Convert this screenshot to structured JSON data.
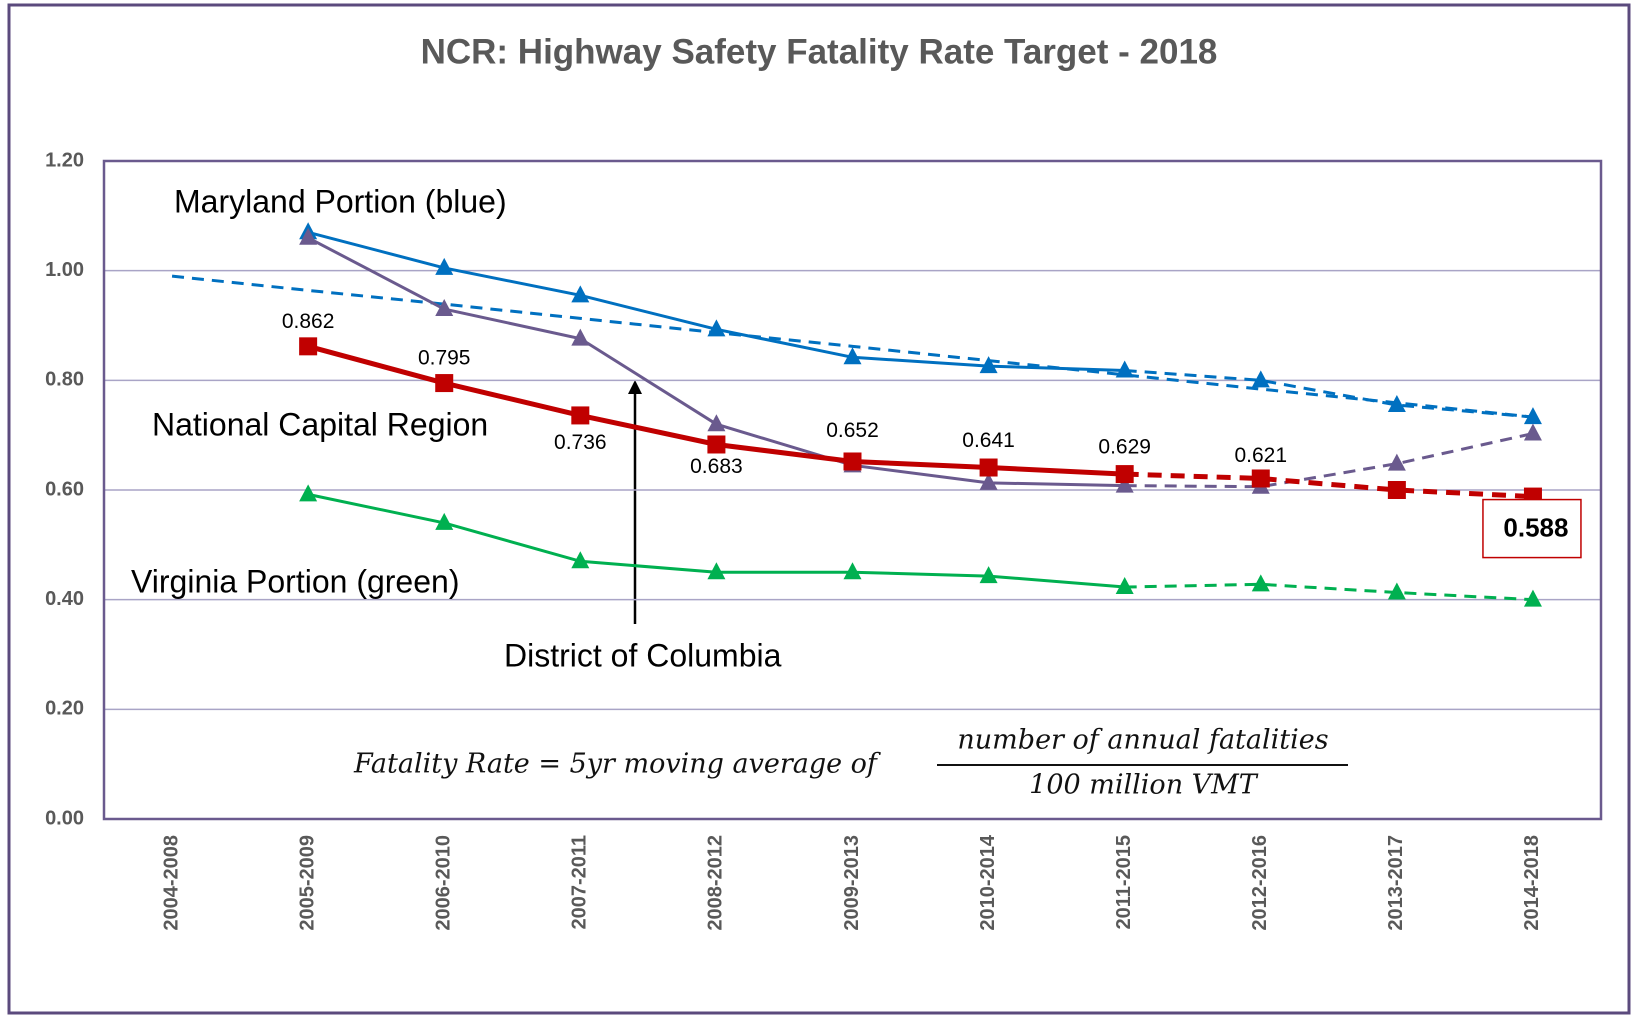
{
  "chart_data": {
    "type": "line",
    "title": "NCR: Highway Safety Fatality Rate Target - 2018",
    "categories": [
      "2004-2008",
      "2005-2009",
      "2006-2010",
      "2007-2011",
      "2008-2012",
      "2009-2013",
      "2010-2014",
      "2011-2015",
      "2012-2016",
      "2013-2017",
      "2014-2018"
    ],
    "series": [
      {
        "style": "dashed",
        "color": "#0070c0",
        "values": [
          0.99,
          0.964,
          0.939,
          0.913,
          0.887,
          0.862,
          0.836,
          0.81,
          0.784,
          0.759,
          0.733
        ]
      },
      {
        "name": "Maryland Portion (blue)",
        "color": "#0070c0",
        "marker": "triangle",
        "dashed_from": 8,
        "values": [
          null,
          1.07,
          1.005,
          0.955,
          0.893,
          0.842,
          0.826,
          0.818,
          0.8,
          0.755,
          0.733
        ]
      },
      {
        "name": "District of Columbia",
        "color": "#6a5a8e",
        "marker": "triangle",
        "dashed_from": 8,
        "values": [
          null,
          1.06,
          0.93,
          0.876,
          0.72,
          0.645,
          0.613,
          0.608,
          0.606,
          0.648,
          0.703
        ]
      },
      {
        "name": "Virginia Portion (green)",
        "color": "#00b050",
        "marker": "triangle",
        "dashed_from": 8,
        "values": [
          null,
          0.592,
          0.54,
          0.47,
          0.45,
          0.45,
          0.443,
          0.423,
          0.428,
          0.413,
          0.4
        ]
      },
      {
        "name": "National Capital Region",
        "color": "#c00000",
        "marker": "square",
        "dashed_from": 8,
        "values": [
          null,
          0.862,
          0.795,
          0.736,
          0.683,
          0.652,
          0.641,
          0.629,
          0.621,
          0.6,
          0.588
        ],
        "value_labels": [
          null,
          "0.862",
          "0.795",
          "0.736",
          "0.683",
          "0.652",
          "0.641",
          "0.629",
          "0.621",
          null,
          "0.588"
        ]
      }
    ],
    "ylim": [
      0,
      1.2
    ],
    "yticks": [
      {
        "value": 0,
        "label": "0.00"
      },
      {
        "value": 0.2,
        "label": "0.20"
      },
      {
        "value": 0.4,
        "label": "0.40"
      },
      {
        "value": 0.6,
        "label": "0.60"
      },
      {
        "value": 0.8,
        "label": "0.80"
      },
      {
        "value": 1,
        "label": "1.00"
      },
      {
        "value": 1.2,
        "label": "1.20"
      }
    ],
    "grid": true,
    "formula": {
      "lhs": "Fatality Rate = 5yr moving average of",
      "numerator": "number of annual fatalities",
      "denominator": "100 million VMT"
    }
  }
}
